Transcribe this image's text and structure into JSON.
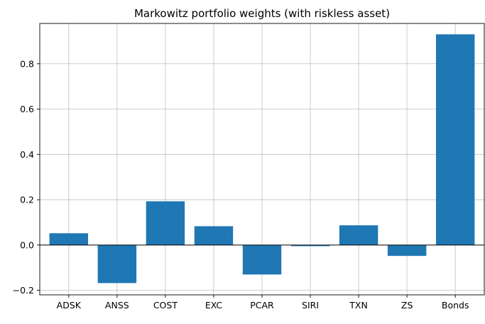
{
  "chart_data": {
    "type": "bar",
    "title": "Markowitz portfolio weights (with riskless asset)",
    "xlabel": "",
    "ylabel": "",
    "categories": [
      "ADSK",
      "ANSS",
      "COST",
      "EXC",
      "PCAR",
      "SIRI",
      "TXN",
      "ZS",
      "Bonds"
    ],
    "values": [
      0.052,
      -0.168,
      0.193,
      0.083,
      -0.13,
      -0.005,
      0.087,
      -0.048,
      0.93
    ],
    "ylim": [
      -0.22,
      0.978
    ],
    "yticks": [
      -0.2,
      0.0,
      0.2,
      0.4,
      0.6,
      0.8
    ],
    "ytick_labels": [
      "−0.2",
      "0.0",
      "0.2",
      "0.4",
      "0.6",
      "0.8"
    ],
    "grid": true,
    "zero_line": true,
    "bar_color": "#1f77b4"
  }
}
